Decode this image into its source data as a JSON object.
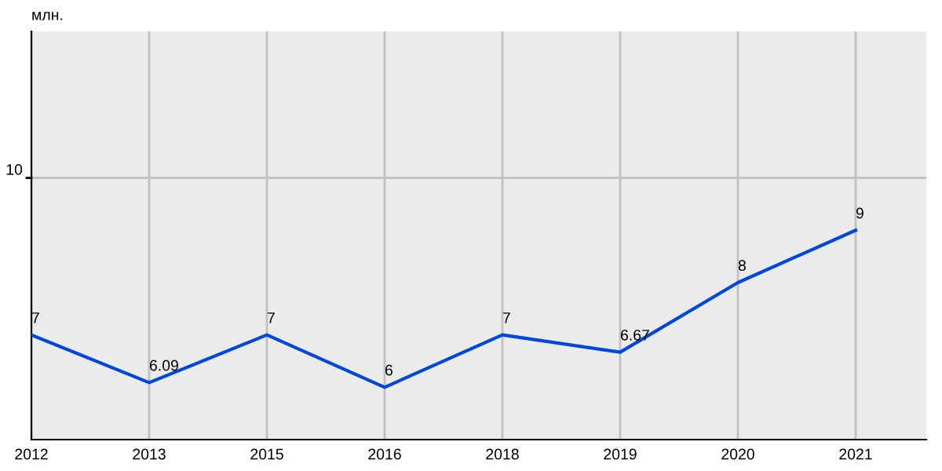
{
  "chart_data": {
    "type": "line",
    "ylabel": "млн.",
    "categories": [
      "2012",
      "2013",
      "2015",
      "2016",
      "2018",
      "2019",
      "2020",
      "2021"
    ],
    "series": [
      {
        "color": "#0047e0",
        "values": [
          7,
          6.09,
          7,
          6,
          7,
          6.67,
          8,
          9
        ]
      }
    ],
    "ylim": [
      5,
      12.8
    ],
    "ref_lines": [
      {
        "axis": "y",
        "value": 10,
        "label": "10",
        "color": "#c0c0c0"
      }
    ],
    "grid": "x",
    "data_labels": true,
    "marker": "none",
    "line_style": "solid",
    "legend": false
  }
}
